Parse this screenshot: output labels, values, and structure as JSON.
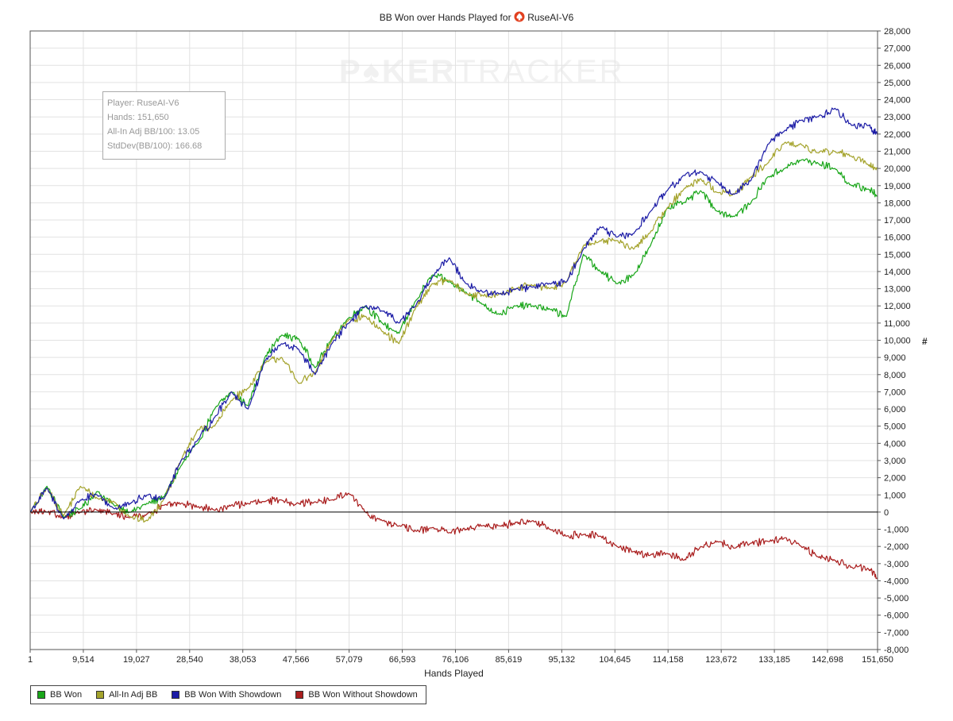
{
  "title": {
    "prefix": "BB Won over Hands Played for",
    "player": "RuseAI-V6",
    "icon": "poker-spade-icon"
  },
  "stats_box": {
    "player": "Player: RuseAI-V6",
    "hands": "Hands: 151,650",
    "allin_adj": "All-In Adj BB/100: 13.05",
    "stddev": "StdDev(BB/100): 166.68"
  },
  "watermark": {
    "part1": "P",
    "part2": "KER",
    "part3": "TRACKER"
  },
  "y_axis_unit": "#",
  "colors": {
    "bb_won": "#19a619",
    "allin_adj": "#a4a32c",
    "showdown": "#1c1ca6",
    "without_showdown": "#a91d1d",
    "grid": "#e2e2e2",
    "zero_line": "#000000"
  },
  "chart_data": {
    "type": "line",
    "title": "BB Won over Hands Played for RuseAI-V6",
    "xlabel": "Hands Played",
    "ylabel": "",
    "x_ticks": [
      1,
      9514,
      19027,
      28540,
      38053,
      47566,
      57079,
      66593,
      76106,
      85619,
      95132,
      104645,
      114158,
      123672,
      133185,
      142698,
      151650
    ],
    "x_tick_labels": [
      "1",
      "9,514",
      "19,027",
      "28,540",
      "38,053",
      "47,566",
      "57,079",
      "66,593",
      "76,106",
      "85,619",
      "95,132",
      "104,645",
      "114,158",
      "123,672",
      "133,185",
      "142,698",
      "151,650"
    ],
    "xlim": [
      1,
      151650
    ],
    "ylim": [
      -8000,
      28000
    ],
    "y_ticks": [
      -8000,
      -7000,
      -6000,
      -5000,
      -4000,
      -3000,
      -2000,
      -1000,
      0,
      1000,
      2000,
      3000,
      4000,
      5000,
      6000,
      7000,
      8000,
      9000,
      10000,
      11000,
      12000,
      13000,
      14000,
      15000,
      16000,
      17000,
      18000,
      19000,
      20000,
      21000,
      22000,
      23000,
      24000,
      25000,
      26000,
      27000,
      28000
    ],
    "grid": true,
    "legend_position": "bottom-left",
    "series": [
      {
        "name": "BB Won",
        "x": [
          1,
          3000,
          6000,
          9000,
          12000,
          15000,
          18000,
          21000,
          24000,
          27000,
          30000,
          33000,
          36000,
          39000,
          42000,
          45000,
          48000,
          51000,
          54000,
          57000,
          60000,
          63000,
          66000,
          69000,
          72000,
          75000,
          78000,
          81000,
          84000,
          87000,
          90000,
          93000,
          96000,
          99000,
          102000,
          105000,
          108000,
          111000,
          114000,
          117000,
          120000,
          123000,
          126000,
          129000,
          132000,
          135000,
          138000,
          141000,
          144000,
          147000,
          150000,
          151650
        ],
        "values": [
          0,
          1500,
          -300,
          200,
          1200,
          400,
          0,
          500,
          900,
          2700,
          4000,
          6000,
          7000,
          6200,
          9000,
          10300,
          10100,
          8400,
          10100,
          11300,
          12000,
          11000,
          10400,
          12300,
          13800,
          13400,
          12800,
          12100,
          11500,
          12000,
          12000,
          11800,
          11400,
          15000,
          14000,
          13300,
          13800,
          15500,
          17700,
          18000,
          18700,
          17500,
          17200,
          18000,
          19500,
          20000,
          20500,
          20300,
          20000,
          19000,
          18800,
          18400
        ]
      },
      {
        "name": "All-In Adj BB",
        "x": [
          1,
          3000,
          6000,
          9000,
          12000,
          15000,
          18000,
          21000,
          24000,
          27000,
          30000,
          33000,
          36000,
          39000,
          42000,
          45000,
          48000,
          51000,
          54000,
          57000,
          60000,
          63000,
          66000,
          69000,
          72000,
          75000,
          78000,
          81000,
          84000,
          87000,
          90000,
          93000,
          96000,
          99000,
          102000,
          105000,
          108000,
          111000,
          114000,
          117000,
          120000,
          123000,
          126000,
          129000,
          132000,
          135000,
          138000,
          141000,
          144000,
          147000,
          150000,
          151650
        ],
        "values": [
          0,
          1400,
          -200,
          1500,
          800,
          600,
          -300,
          -500,
          800,
          3000,
          4800,
          5000,
          6500,
          7200,
          8700,
          9000,
          7500,
          8100,
          10000,
          11200,
          11400,
          10500,
          9800,
          11900,
          13300,
          13500,
          12700,
          12600,
          12700,
          13000,
          13200,
          13000,
          13400,
          15500,
          15800,
          15800,
          15300,
          16300,
          17700,
          18800,
          19400,
          18600,
          18500,
          19500,
          20300,
          21500,
          21400,
          20900,
          21000,
          20700,
          20200,
          20000
        ]
      },
      {
        "name": "BB Won With Showdown",
        "x": [
          1,
          3000,
          6000,
          9000,
          12000,
          15000,
          18000,
          21000,
          24000,
          27000,
          30000,
          33000,
          36000,
          39000,
          42000,
          45000,
          48000,
          51000,
          54000,
          57000,
          60000,
          63000,
          66000,
          69000,
          72000,
          75000,
          78000,
          81000,
          84000,
          87000,
          90000,
          93000,
          96000,
          99000,
          102000,
          105000,
          108000,
          111000,
          114000,
          117000,
          120000,
          123000,
          126000,
          129000,
          132000,
          135000,
          138000,
          141000,
          144000,
          147000,
          150000,
          151650
        ],
        "values": [
          0,
          1400,
          -400,
          700,
          1000,
          200,
          500,
          1000,
          800,
          3000,
          4200,
          5500,
          7000,
          6000,
          8800,
          9800,
          9500,
          8000,
          9800,
          11000,
          12000,
          11700,
          11000,
          12000,
          13700,
          14800,
          13300,
          12800,
          12700,
          13000,
          13100,
          13300,
          13400,
          15300,
          16600,
          16000,
          16200,
          17500,
          18700,
          19600,
          19800,
          19200,
          18500,
          19300,
          21400,
          22200,
          22800,
          23000,
          23500,
          22500,
          22500,
          22000
        ]
      },
      {
        "name": "BB Won Without Showdown",
        "x": [
          1,
          3000,
          6000,
          9000,
          12000,
          15000,
          18000,
          21000,
          24000,
          27000,
          30000,
          33000,
          36000,
          39000,
          42000,
          45000,
          48000,
          51000,
          54000,
          57000,
          60000,
          63000,
          66000,
          69000,
          72000,
          75000,
          78000,
          81000,
          84000,
          87000,
          90000,
          93000,
          96000,
          99000,
          102000,
          105000,
          108000,
          111000,
          114000,
          117000,
          120000,
          123000,
          126000,
          129000,
          132000,
          135000,
          138000,
          141000,
          144000,
          147000,
          150000,
          151650
        ],
        "values": [
          0,
          0,
          -300,
          0,
          100,
          -100,
          -300,
          -100,
          400,
          500,
          300,
          100,
          400,
          500,
          600,
          700,
          500,
          600,
          700,
          1100,
          0,
          -500,
          -800,
          -1100,
          -900,
          -1200,
          -1000,
          -800,
          -800,
          -600,
          -500,
          -1000,
          -1400,
          -1300,
          -1400,
          -2000,
          -2300,
          -2500,
          -2400,
          -2800,
          -2000,
          -1700,
          -2100,
          -1800,
          -1700,
          -1500,
          -2000,
          -2600,
          -2800,
          -3200,
          -3300,
          -3900
        ]
      }
    ]
  }
}
